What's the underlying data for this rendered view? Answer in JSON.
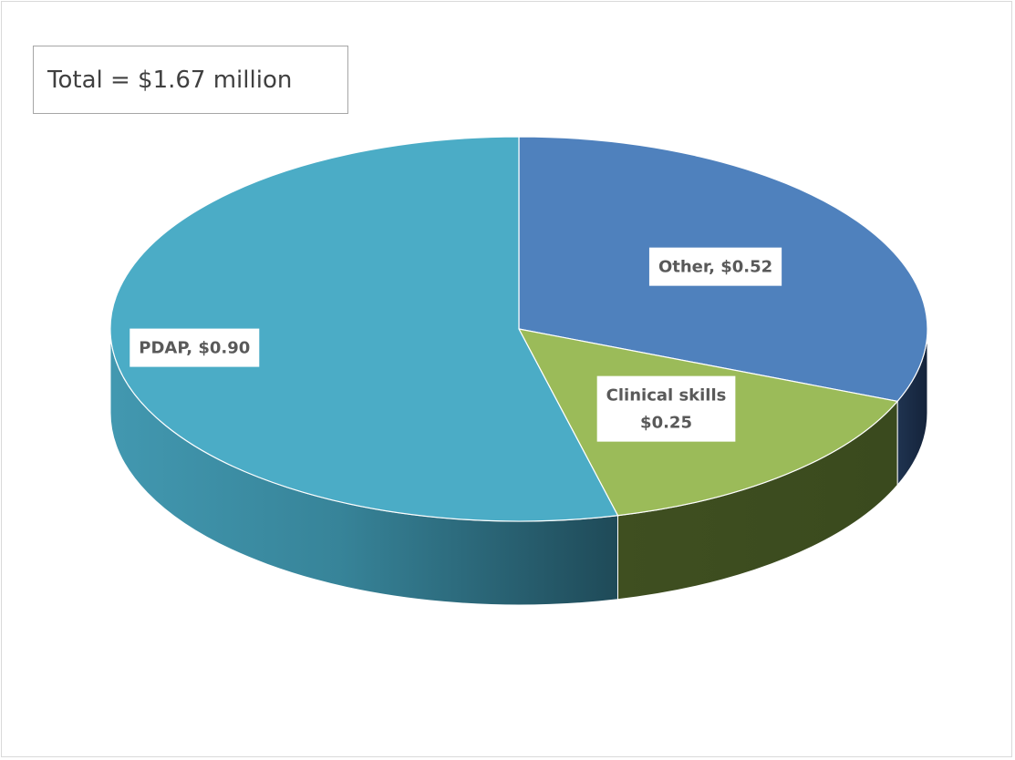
{
  "annotation": {
    "total_text": "Total = $1.67 million"
  },
  "chart_data": {
    "type": "pie",
    "style": "3d",
    "title": "",
    "slices": [
      {
        "label": "Other",
        "value": 0.52,
        "color": "#4f81bd",
        "label_lines": [
          "Other,  $0.52"
        ]
      },
      {
        "label": "Clinical skills",
        "value": 0.25,
        "color": "#9bbb59",
        "label_lines": [
          "Clinical skills",
          "$0.25"
        ]
      },
      {
        "label": "PDAP",
        "value": 0.9,
        "color": "#4bacc6",
        "label_lines": [
          "PDAP,  $0.90"
        ]
      }
    ],
    "legend": "none"
  }
}
